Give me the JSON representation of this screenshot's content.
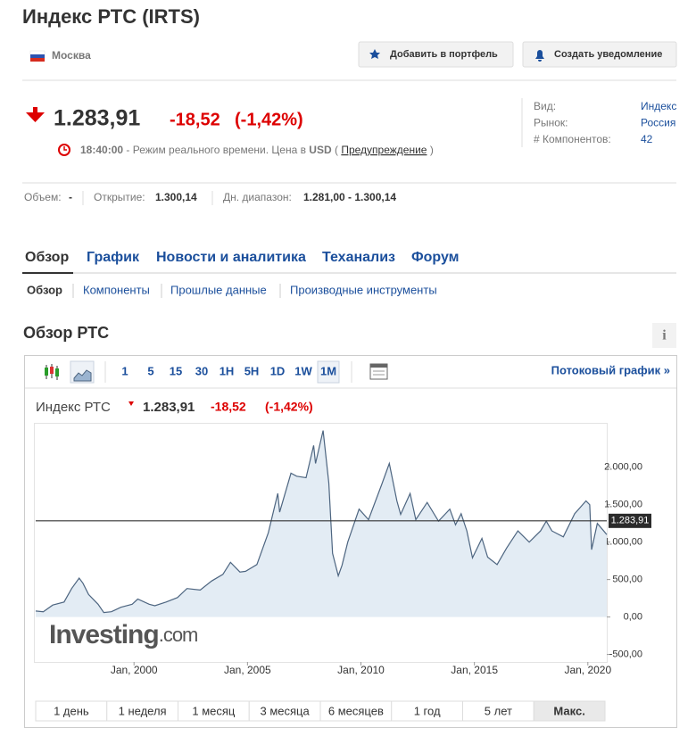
{
  "header": {
    "title": "Индекс РТС (IRTS)",
    "location": "Москва",
    "buttons": [
      "Добавить в портфель",
      "Создать уведомление"
    ]
  },
  "quote": {
    "price": "1.283,91",
    "change": "-18,52",
    "change_pct": "(-1,42%)",
    "time": "18:40:00",
    "status": "- Режим реального времени. Цена в",
    "currency": "USD",
    "open_paren": "(",
    "warning": "Предупреждение",
    "close_paren": ")"
  },
  "info": [
    [
      "Вид:",
      "Индекс"
    ],
    [
      "Рынок:",
      "Россия"
    ],
    [
      "# Компонентов:",
      "42"
    ]
  ],
  "stats": [
    [
      "Объем:",
      "-"
    ],
    [
      "Открытие:",
      "1.300,14"
    ],
    [
      "Дн. диапазон:",
      "1.281,00 - 1.300,14"
    ]
  ],
  "tabs": [
    "Обзор",
    "График",
    "Новости и аналитика",
    "Теханализ",
    "Форум"
  ],
  "subtabs": [
    "Обзор",
    "Компоненты",
    "Прошлые данные",
    "Производные инструменты"
  ],
  "section": {
    "title": "Обзор РТС",
    "info_icon": "i"
  },
  "toolbar": {
    "intervals": [
      "1",
      "5",
      "15",
      "30",
      "1H",
      "5H",
      "1D",
      "1W",
      "1M"
    ],
    "active_interval": "1M",
    "streaming": "Потоковый график »"
  },
  "ranges": [
    "1 день",
    "1 неделя",
    "1 месяц",
    "3 месяца",
    "6 месяцев",
    "1 год",
    "5 лет",
    "Макс."
  ],
  "active_range": "Макс.",
  "chart_data": {
    "type": "area",
    "title": "Индекс РТС",
    "price": "1.283,91",
    "change": "-18,52",
    "change_pct": "(-1,42%)",
    "watermark": [
      "Investing",
      ".com"
    ],
    "x": [
      "1995-09",
      "1996-01",
      "1996-06",
      "1996-12",
      "1997-04",
      "1997-08",
      "1997-10",
      "1998-01",
      "1998-06",
      "1998-09",
      "1999-01",
      "1999-06",
      "1999-12",
      "2000-03",
      "2000-09",
      "2000-12",
      "2001-06",
      "2001-12",
      "2002-05",
      "2002-12",
      "2003-06",
      "2003-12",
      "2004-04",
      "2004-09",
      "2004-12",
      "2005-06",
      "2005-12",
      "2006-05",
      "2006-06",
      "2006-12",
      "2007-03",
      "2007-08",
      "2007-12",
      "2008-01",
      "2008-05",
      "2008-08",
      "2008-10",
      "2009-01",
      "2009-03",
      "2009-06",
      "2009-12",
      "2010-05",
      "2010-12",
      "2011-04",
      "2011-08",
      "2011-10",
      "2012-03",
      "2012-06",
      "2012-12",
      "2013-06",
      "2013-12",
      "2014-03",
      "2014-06",
      "2014-09",
      "2014-12",
      "2015-05",
      "2015-08",
      "2016-01",
      "2016-06",
      "2016-12",
      "2017-06",
      "2017-12",
      "2018-03",
      "2018-06",
      "2018-12",
      "2019-06",
      "2019-12",
      "2020-02",
      "2020-03",
      "2020-06",
      "2020-09",
      "2020-11"
    ],
    "values": [
      80,
      70,
      160,
      200,
      380,
      520,
      450,
      300,
      170,
      60,
      70,
      130,
      170,
      240,
      170,
      150,
      200,
      260,
      380,
      360,
      480,
      570,
      730,
      600,
      610,
      700,
      1125,
      1650,
      1400,
      1920,
      1880,
      1860,
      2290,
      2050,
      2490,
      1790,
      850,
      550,
      690,
      1000,
      1440,
      1300,
      1770,
      2050,
      1550,
      1370,
      1650,
      1300,
      1530,
      1280,
      1440,
      1230,
      1380,
      1150,
      790,
      1050,
      800,
      700,
      920,
      1150,
      1000,
      1150,
      1280,
      1150,
      1070,
      1380,
      1550,
      1500,
      900,
      1250,
      1160,
      1100
    ],
    "color": "#4d6580",
    "fill": "#e3ecf4",
    "current": {
      "value": 1283.91,
      "label": "1.283,91"
    },
    "xlim": [
      "1995-09",
      "2020-11"
    ],
    "ylim": [
      -600,
      2580
    ],
    "xticks": [
      {
        "value": "2000-01",
        "label": "Jan, 2000"
      },
      {
        "value": "2005-01",
        "label": "Jan, 2005"
      },
      {
        "value": "2010-01",
        "label": "Jan, 2010"
      },
      {
        "value": "2015-01",
        "label": "Jan, 2015"
      },
      {
        "value": "2020-01",
        "label": "Jan, 2020"
      }
    ],
    "yticks": [
      {
        "value": 2000,
        "label": "2.000,00"
      },
      {
        "value": 1500,
        "label": "1.500,00"
      },
      {
        "value": 1000,
        "label": "1.000,00"
      },
      {
        "value": 500,
        "label": "500,00"
      },
      {
        "value": 0,
        "label": "0,00"
      },
      {
        "value": -500,
        "label": "-500,00"
      }
    ]
  }
}
